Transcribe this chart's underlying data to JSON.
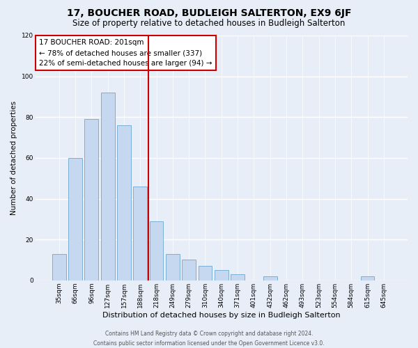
{
  "title": "17, BOUCHER ROAD, BUDLEIGH SALTERTON, EX9 6JF",
  "subtitle": "Size of property relative to detached houses in Budleigh Salterton",
  "xlabel": "Distribution of detached houses by size in Budleigh Salterton",
  "ylabel": "Number of detached properties",
  "bar_labels": [
    "35sqm",
    "66sqm",
    "96sqm",
    "127sqm",
    "157sqm",
    "188sqm",
    "218sqm",
    "249sqm",
    "279sqm",
    "310sqm",
    "340sqm",
    "371sqm",
    "401sqm",
    "432sqm",
    "462sqm",
    "493sqm",
    "523sqm",
    "554sqm",
    "584sqm",
    "615sqm",
    "645sqm"
  ],
  "bar_values": [
    13,
    60,
    79,
    92,
    76,
    46,
    29,
    13,
    10,
    7,
    5,
    3,
    0,
    2,
    0,
    0,
    0,
    0,
    0,
    2,
    0
  ],
  "bar_color": "#c5d8f0",
  "bar_edge_color": "#7aafd4",
  "property_line_x": 6,
  "annotation_title": "17 BOUCHER ROAD: 201sqm",
  "annotation_line1": "← 78% of detached houses are smaller (337)",
  "annotation_line2": "22% of semi-detached houses are larger (94) →",
  "vline_color": "#cc0000",
  "annotation_box_edge_color": "#cc0000",
  "ylim": [
    0,
    120
  ],
  "yticks": [
    0,
    20,
    40,
    60,
    80,
    100,
    120
  ],
  "footer_line1": "Contains HM Land Registry data © Crown copyright and database right 2024.",
  "footer_line2": "Contains public sector information licensed under the Open Government Licence v3.0.",
  "bg_color": "#e8eef8",
  "grid_color": "#ffffff",
  "title_fontsize": 10,
  "subtitle_fontsize": 8.5,
  "ylabel_fontsize": 7.5,
  "xlabel_fontsize": 8,
  "tick_fontsize": 6.5,
  "annotation_fontsize": 7.5,
  "footer_fontsize": 5.5
}
